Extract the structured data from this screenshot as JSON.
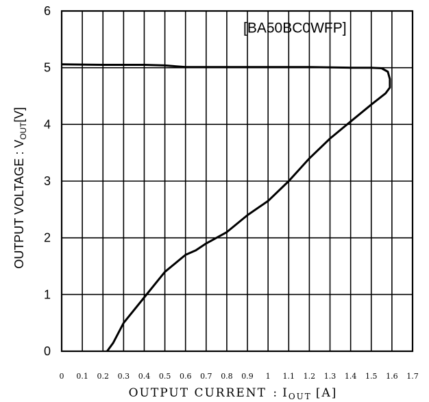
{
  "chart_data": {
    "type": "line",
    "annotation": "[BA50BC0WFP]",
    "xlabel_main": "OUTPUT CURRENT",
    "xlabel_colon": ":",
    "xlabel_symbol": "I",
    "xlabel_sub": "OUT",
    "xlabel_unit": "[A]",
    "ylabel_main": "OUTPUT VOLTAGE : V",
    "ylabel_sub": "OUT",
    "ylabel_unit": "[V]",
    "xlim": [
      0,
      1.7
    ],
    "ylim": [
      0,
      6
    ],
    "x_ticks": [
      0,
      0.1,
      0.2,
      0.3,
      0.4,
      0.5,
      0.6,
      0.7,
      0.8,
      0.9,
      1.0,
      1.1,
      1.2,
      1.3,
      1.4,
      1.5,
      1.6,
      1.7
    ],
    "x_tick_labels": [
      "0",
      "0.1",
      "0.2",
      "0.3",
      "0.4",
      "0.5",
      "0.6",
      "0.7",
      "0.8",
      "0.9",
      "1",
      "1.1",
      "1.2",
      "1.3",
      "1.4",
      "1.5",
      "1.6",
      "1.7"
    ],
    "y_ticks": [
      0,
      1,
      2,
      3,
      4,
      5,
      6
    ],
    "y_tick_labels": [
      "0",
      "1",
      "2",
      "3",
      "4",
      "5",
      "6"
    ],
    "grid": true,
    "series": [
      {
        "x": [
          0.0,
          0.2,
          0.4,
          0.5,
          0.6,
          0.8,
          1.0,
          1.2,
          1.4,
          1.5,
          1.55,
          1.58,
          1.59,
          1.59,
          1.57,
          1.5,
          1.45,
          1.4,
          1.3,
          1.2,
          1.1,
          1.0,
          0.9,
          0.8,
          0.7,
          0.65,
          0.6,
          0.5,
          0.4,
          0.3,
          0.25,
          0.22
        ],
        "y": [
          5.06,
          5.05,
          5.05,
          5.04,
          5.01,
          5.01,
          5.01,
          5.01,
          5.0,
          5.0,
          4.99,
          4.93,
          4.8,
          4.65,
          4.55,
          4.35,
          4.2,
          4.05,
          3.75,
          3.4,
          3.0,
          2.65,
          2.4,
          2.1,
          1.9,
          1.78,
          1.7,
          1.4,
          0.95,
          0.5,
          0.15,
          0.0
        ]
      }
    ]
  }
}
